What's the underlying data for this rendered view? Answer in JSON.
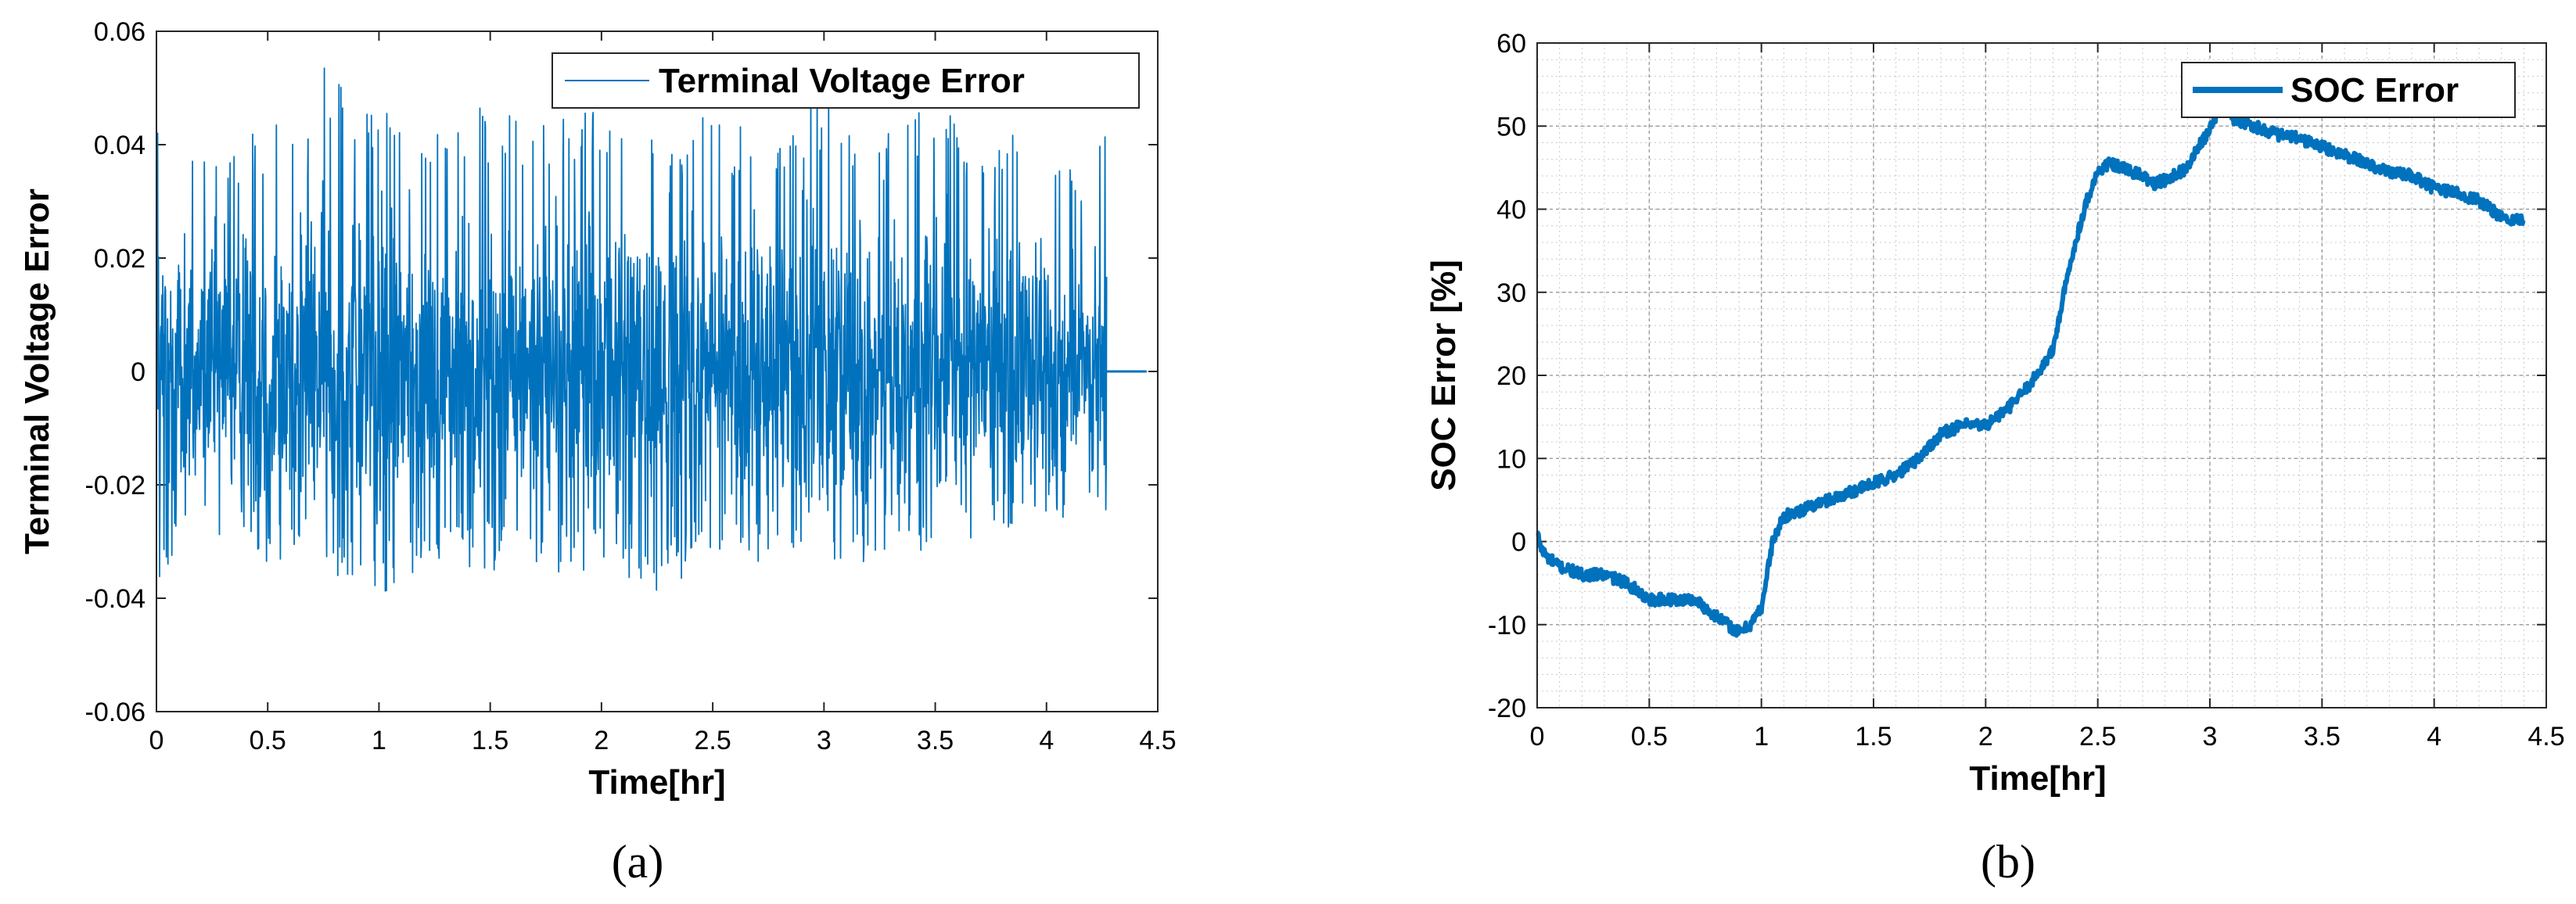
{
  "chart_data": [
    {
      "type": "line",
      "caption": "(a)",
      "xlabel": "Time[hr]",
      "ylabel": "Terminal Voltage Error",
      "xlim": [
        0,
        4.5
      ],
      "ylim": [
        -0.06,
        0.06
      ],
      "xticks": [
        "0",
        "0.5",
        "1",
        "1.5",
        "2",
        "2.5",
        "3",
        "3.5",
        "4",
        "4.5"
      ],
      "yticks": [
        "-0.06",
        "-0.04",
        "-0.02",
        "0",
        "0.02",
        "0.04",
        "0.06"
      ],
      "grid": false,
      "legend_position": "top-right",
      "color": "#0072BD",
      "series": [
        {
          "name": "Terminal Voltage Error",
          "envelope": {
            "x": [
              0,
              0.25,
              0.5,
              0.75,
              1.0,
              1.25,
              1.5,
              1.75,
              2.0,
              2.25,
              2.5,
              2.75,
              3.0,
              3.25,
              3.5,
              3.75,
              4.0,
              4.2,
              4.27
            ],
            "upper": [
              0.045,
              0.04,
              0.046,
              0.054,
              0.047,
              0.043,
              0.049,
              0.046,
              0.048,
              0.046,
              0.045,
              0.043,
              0.052,
              0.044,
              0.05,
              0.042,
              0.043,
              0.035,
              0.044
            ],
            "lower": [
              -0.038,
              -0.03,
              -0.036,
              -0.033,
              -0.04,
              -0.035,
              -0.035,
              -0.036,
              -0.035,
              -0.04,
              -0.033,
              -0.035,
              -0.038,
              -0.036,
              -0.03,
              -0.03,
              -0.028,
              -0.022,
              -0.03
            ]
          },
          "tail": {
            "x": [
              4.27,
              4.45
            ],
            "y": [
              0,
              0
            ]
          }
        }
      ]
    },
    {
      "type": "line",
      "caption": "(b)",
      "xlabel": "Time[hr]",
      "ylabel": "SOC Error [%]",
      "xlim": [
        0,
        4.5
      ],
      "ylim": [
        -20,
        60
      ],
      "xticks": [
        "0",
        "0.5",
        "1",
        "1.5",
        "2",
        "2.5",
        "3",
        "3.5",
        "4",
        "4.5"
      ],
      "yticks": [
        "-20",
        "-10",
        "0",
        "10",
        "20",
        "30",
        "40",
        "50",
        "60"
      ],
      "grid": true,
      "minor_grid": true,
      "legend_position": "top-right",
      "color": "#0072BD",
      "series": [
        {
          "name": "SOC Error",
          "x": [
            0,
            0.02,
            0.05,
            0.1,
            0.2,
            0.3,
            0.4,
            0.5,
            0.6,
            0.7,
            0.8,
            0.85,
            0.9,
            0.95,
            1.0,
            1.05,
            1.1,
            1.2,
            1.3,
            1.4,
            1.5,
            1.6,
            1.7,
            1.8,
            1.9,
            2.0,
            2.1,
            2.2,
            2.3,
            2.35,
            2.4,
            2.45,
            2.5,
            2.55,
            2.6,
            2.7,
            2.75,
            2.8,
            2.9,
            2.95,
            3.0,
            3.05,
            3.1,
            3.2,
            3.3,
            3.4,
            3.5,
            3.6,
            3.7,
            3.8,
            3.9,
            4.0,
            4.1,
            4.2,
            4.3,
            4.4
          ],
          "y": [
            1,
            -1,
            -2,
            -3,
            -4,
            -4,
            -5,
            -7,
            -7,
            -7,
            -9,
            -10,
            -11,
            -10,
            -8,
            0,
            3,
            4,
            5,
            6,
            7,
            8,
            10,
            13,
            14,
            14,
            16,
            19,
            23,
            30,
            36,
            41,
            44.5,
            45.5,
            45,
            44,
            43,
            43.5,
            45,
            47.5,
            49.5,
            53,
            51,
            50,
            49,
            48.5,
            47.5,
            46.5,
            45.5,
            44.5,
            44,
            42.5,
            42,
            41,
            39,
            38.7
          ]
        }
      ]
    }
  ]
}
